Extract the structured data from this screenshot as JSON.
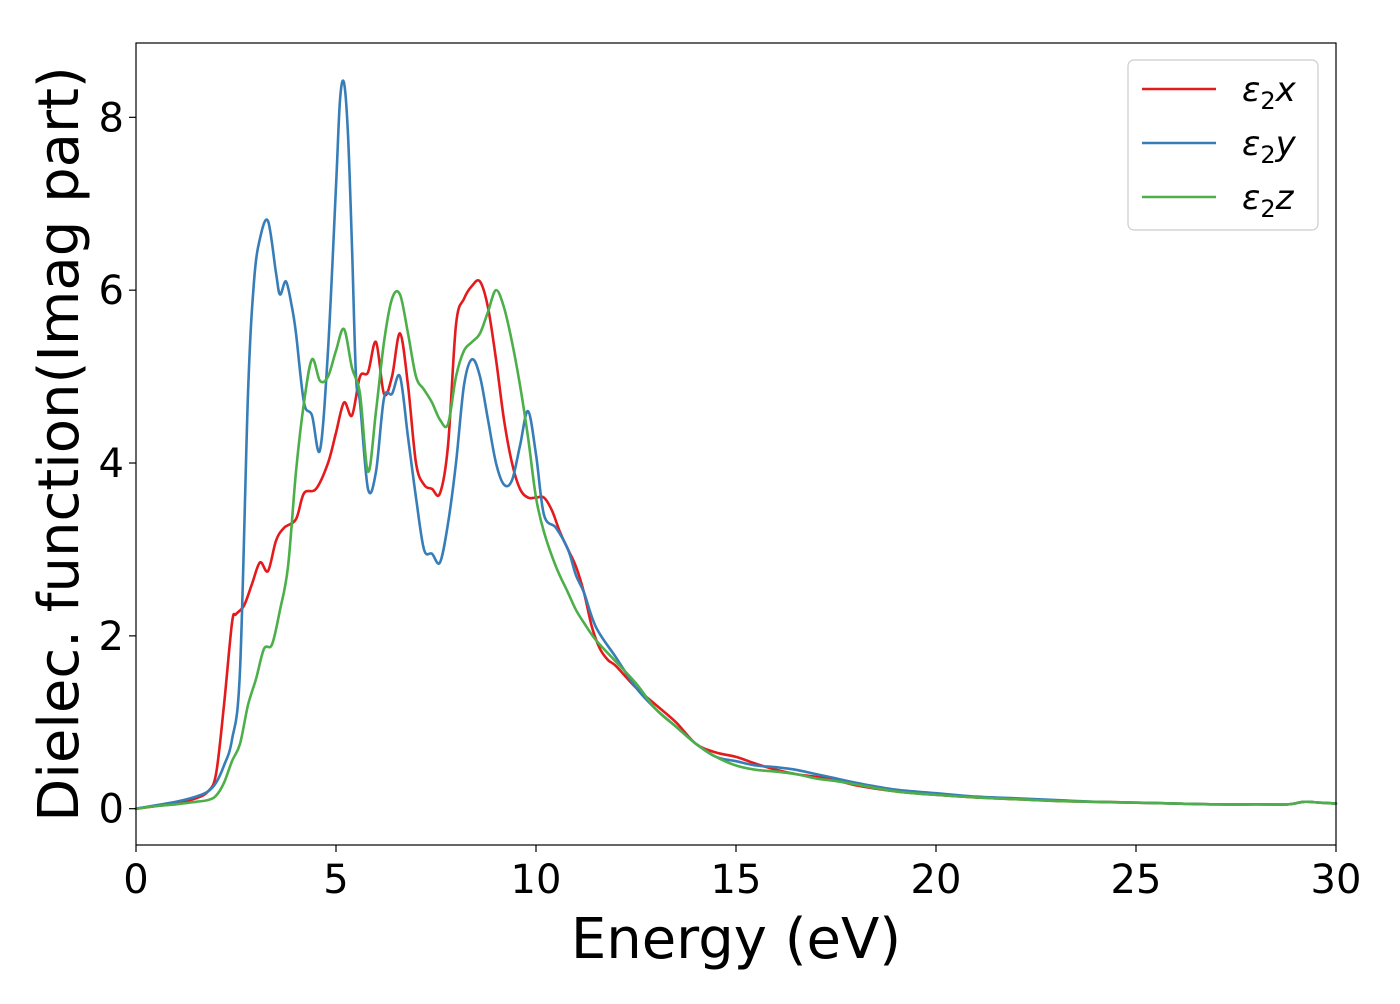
{
  "chart_data": {
    "type": "line",
    "xlabel": "Energy (eV)",
    "ylabel": "Dielec. function(Imag part)",
    "xlim": [
      0,
      30
    ],
    "ylim": [
      -0.42,
      8.86
    ],
    "xticks": [
      0,
      5,
      10,
      15,
      20,
      25,
      30
    ],
    "yticks": [
      0,
      2,
      4,
      6,
      8
    ],
    "grid": false,
    "legend_position": "top-right",
    "series": [
      {
        "name": "ε₂x",
        "legend": {
          "symbol": "ε",
          "sub": "2",
          "var": "x"
        },
        "color": "#e41a1c",
        "x": [
          0,
          0.5,
          1,
          1.5,
          1.8,
          2,
          2.2,
          2.4,
          2.5,
          2.7,
          2.9,
          3.1,
          3.3,
          3.5,
          3.7,
          4,
          4.2,
          4.5,
          4.8,
          5,
          5.2,
          5.4,
          5.6,
          5.8,
          6,
          6.2,
          6.4,
          6.6,
          6.8,
          7,
          7.2,
          7.4,
          7.6,
          7.8,
          8,
          8.2,
          8.4,
          8.6,
          8.8,
          9,
          9.2,
          9.4,
          9.6,
          9.8,
          10,
          10.2,
          10.4,
          10.6,
          10.8,
          11,
          11.2,
          11.4,
          11.6,
          11.8,
          12,
          12.5,
          13,
          13.5,
          14,
          14.5,
          15,
          15.5,
          16,
          16.5,
          17,
          17.5,
          18,
          19,
          20,
          21,
          22,
          23,
          24,
          25,
          26,
          27,
          28,
          28.8,
          29.2,
          29.6,
          30
        ],
        "values": [
          0,
          0.03,
          0.06,
          0.12,
          0.2,
          0.4,
          1.2,
          2.15,
          2.25,
          2.35,
          2.6,
          2.85,
          2.75,
          3.1,
          3.25,
          3.35,
          3.65,
          3.7,
          4,
          4.35,
          4.7,
          4.55,
          5.0,
          5.05,
          5.4,
          4.8,
          5.0,
          5.5,
          4.9,
          4.0,
          3.75,
          3.7,
          3.65,
          4.2,
          5.6,
          5.9,
          6.05,
          6.1,
          5.8,
          5.2,
          4.5,
          4.0,
          3.7,
          3.6,
          3.6,
          3.6,
          3.45,
          3.2,
          3.0,
          2.8,
          2.5,
          2.1,
          1.85,
          1.72,
          1.65,
          1.4,
          1.2,
          1.0,
          0.75,
          0.65,
          0.6,
          0.52,
          0.45,
          0.4,
          0.37,
          0.33,
          0.27,
          0.2,
          0.16,
          0.13,
          0.11,
          0.09,
          0.08,
          0.07,
          0.06,
          0.05,
          0.05,
          0.05,
          0.08,
          0.07,
          0.06
        ]
      },
      {
        "name": "ε₂y",
        "legend": {
          "symbol": "ε",
          "sub": "2",
          "var": "y"
        },
        "color": "#377eb8",
        "x": [
          0,
          0.5,
          1,
          1.5,
          1.8,
          2,
          2.2,
          2.4,
          2.6,
          2.8,
          2.95,
          3.1,
          3.3,
          3.5,
          3.6,
          3.75,
          3.9,
          4,
          4.2,
          4.4,
          4.6,
          4.8,
          5,
          5.1,
          5.2,
          5.3,
          5.4,
          5.5,
          5.6,
          5.8,
          6,
          6.2,
          6.4,
          6.6,
          6.8,
          7,
          7.2,
          7.4,
          7.6,
          7.8,
          8,
          8.2,
          8.4,
          8.6,
          8.8,
          9,
          9.2,
          9.4,
          9.6,
          9.8,
          10,
          10.2,
          10.5,
          10.8,
          11,
          11.2,
          11.5,
          12,
          12.5,
          13,
          13.5,
          14,
          14.5,
          15,
          15.5,
          16,
          16.5,
          17,
          17.5,
          18,
          19,
          20,
          21,
          22,
          23,
          24,
          25,
          26,
          27,
          28,
          28.8,
          29.2,
          29.6,
          30
        ],
        "values": [
          0,
          0.04,
          0.08,
          0.14,
          0.2,
          0.3,
          0.5,
          0.8,
          1.6,
          4.8,
          6.1,
          6.6,
          6.8,
          6.2,
          5.95,
          6.1,
          5.8,
          5.5,
          4.7,
          4.55,
          4.15,
          5.3,
          7.2,
          8.2,
          8.4,
          7.8,
          6.5,
          5.0,
          4.7,
          3.7,
          3.9,
          4.75,
          4.8,
          5.0,
          4.3,
          3.6,
          3.0,
          2.95,
          2.85,
          3.3,
          4.0,
          4.9,
          5.2,
          5.0,
          4.5,
          4.0,
          3.75,
          3.8,
          4.2,
          4.6,
          4.1,
          3.4,
          3.25,
          3.0,
          2.7,
          2.5,
          2.1,
          1.75,
          1.4,
          1.15,
          0.95,
          0.75,
          0.6,
          0.55,
          0.5,
          0.48,
          0.45,
          0.4,
          0.35,
          0.3,
          0.22,
          0.18,
          0.14,
          0.12,
          0.1,
          0.08,
          0.07,
          0.06,
          0.05,
          0.05,
          0.05,
          0.08,
          0.07,
          0.06
        ]
      },
      {
        "name": "ε₂z",
        "legend": {
          "symbol": "ε",
          "sub": "2",
          "var": "z"
        },
        "color": "#4daf4a",
        "x": [
          0,
          0.5,
          1,
          1.5,
          1.8,
          2,
          2.2,
          2.4,
          2.6,
          2.8,
          3,
          3.2,
          3.4,
          3.6,
          3.8,
          4,
          4.2,
          4.4,
          4.6,
          4.8,
          5,
          5.2,
          5.4,
          5.6,
          5.8,
          6,
          6.2,
          6.4,
          6.6,
          6.8,
          7,
          7.2,
          7.4,
          7.6,
          7.8,
          8,
          8.2,
          8.4,
          8.6,
          8.8,
          9,
          9.2,
          9.4,
          9.6,
          9.8,
          10,
          10.2,
          10.5,
          10.8,
          11,
          11.2,
          11.5,
          12,
          12.5,
          13,
          13.5,
          14,
          14.5,
          15,
          15.5,
          16,
          16.5,
          17,
          17.5,
          18,
          19,
          20,
          21,
          22,
          23,
          24,
          25,
          26,
          27,
          28,
          28.8,
          29.2,
          29.6,
          30
        ],
        "values": [
          0,
          0.03,
          0.05,
          0.08,
          0.1,
          0.15,
          0.3,
          0.55,
          0.75,
          1.2,
          1.5,
          1.85,
          1.9,
          2.3,
          2.8,
          3.9,
          4.7,
          5.2,
          4.95,
          5.0,
          5.3,
          5.55,
          5.1,
          4.8,
          3.9,
          4.6,
          5.4,
          5.9,
          5.95,
          5.5,
          5.0,
          4.85,
          4.7,
          4.5,
          4.45,
          5.0,
          5.3,
          5.4,
          5.5,
          5.75,
          6.0,
          5.8,
          5.4,
          4.9,
          4.3,
          3.6,
          3.2,
          2.8,
          2.5,
          2.3,
          2.15,
          1.95,
          1.7,
          1.45,
          1.15,
          0.95,
          0.75,
          0.6,
          0.5,
          0.45,
          0.43,
          0.4,
          0.35,
          0.32,
          0.28,
          0.2,
          0.16,
          0.13,
          0.11,
          0.09,
          0.08,
          0.07,
          0.06,
          0.05,
          0.05,
          0.05,
          0.08,
          0.07,
          0.06
        ]
      }
    ]
  }
}
